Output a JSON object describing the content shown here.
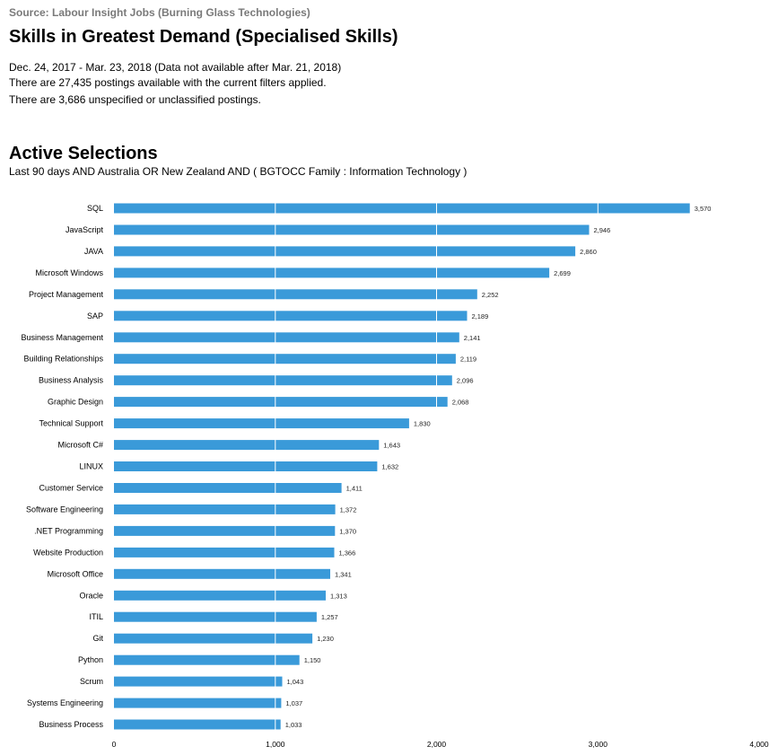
{
  "header": {
    "source": "Source: Labour Insight Jobs (Burning Glass Technologies)",
    "title": "Skills in Greatest Demand (Specialised Skills)",
    "date_range": "Dec.  24, 2017  - Mar.  23, 2018  (Data not available after  Mar.  21, 2018)",
    "postings": "There are 27,435 postings available with the current filters applied.",
    "unspecified": "There are 3,686 unspecified or unclassified postings."
  },
  "selections": {
    "title": "Active Selections",
    "text": "Last 90 days AND Australia OR New Zealand AND ( BGTOCC Family : Information Technology )"
  },
  "colors": {
    "bar": "#3a9ad9",
    "gridline": "#ffffff"
  },
  "chart_data": {
    "type": "bar",
    "orientation": "horizontal",
    "categories": [
      "SQL",
      "JavaScript",
      "JAVA",
      "Microsoft Windows",
      "Project Management",
      "SAP",
      "Business Management",
      "Building Relationships",
      "Business Analysis",
      "Graphic Design",
      "Technical Support",
      "Microsoft C#",
      "LINUX",
      "Customer Service",
      "Software Engineering",
      ".NET Programming",
      "Website Production",
      "Microsoft Office",
      "Oracle",
      "ITIL",
      "Git",
      "Python",
      "Scrum",
      "Systems Engineering",
      "Business Process"
    ],
    "values": [
      3570,
      2946,
      2860,
      2699,
      2252,
      2189,
      2141,
      2119,
      2096,
      2068,
      1830,
      1643,
      1632,
      1411,
      1372,
      1370,
      1366,
      1341,
      1313,
      1257,
      1230,
      1150,
      1043,
      1037,
      1033
    ],
    "value_labels": [
      "3,570",
      "2,946",
      "2,860",
      "2,699",
      "2,252",
      "2,189",
      "2,141",
      "2,119",
      "2,096",
      "2,068",
      "1,830",
      "1,643",
      "1,632",
      "1,411",
      "1,372",
      "1,370",
      "1,366",
      "1,341",
      "1,313",
      "1,257",
      "1,230",
      "1,150",
      "1,043",
      "1,037",
      "1,033"
    ],
    "xlim": [
      0,
      4000
    ],
    "xticks": [
      0,
      1000,
      2000,
      3000,
      4000
    ],
    "xtick_labels": [
      "0",
      "1,000",
      "2,000",
      "3,000",
      "4,000"
    ],
    "grid": "vertical lines drawn over bars",
    "title": "",
    "xlabel": "",
    "ylabel": ""
  }
}
